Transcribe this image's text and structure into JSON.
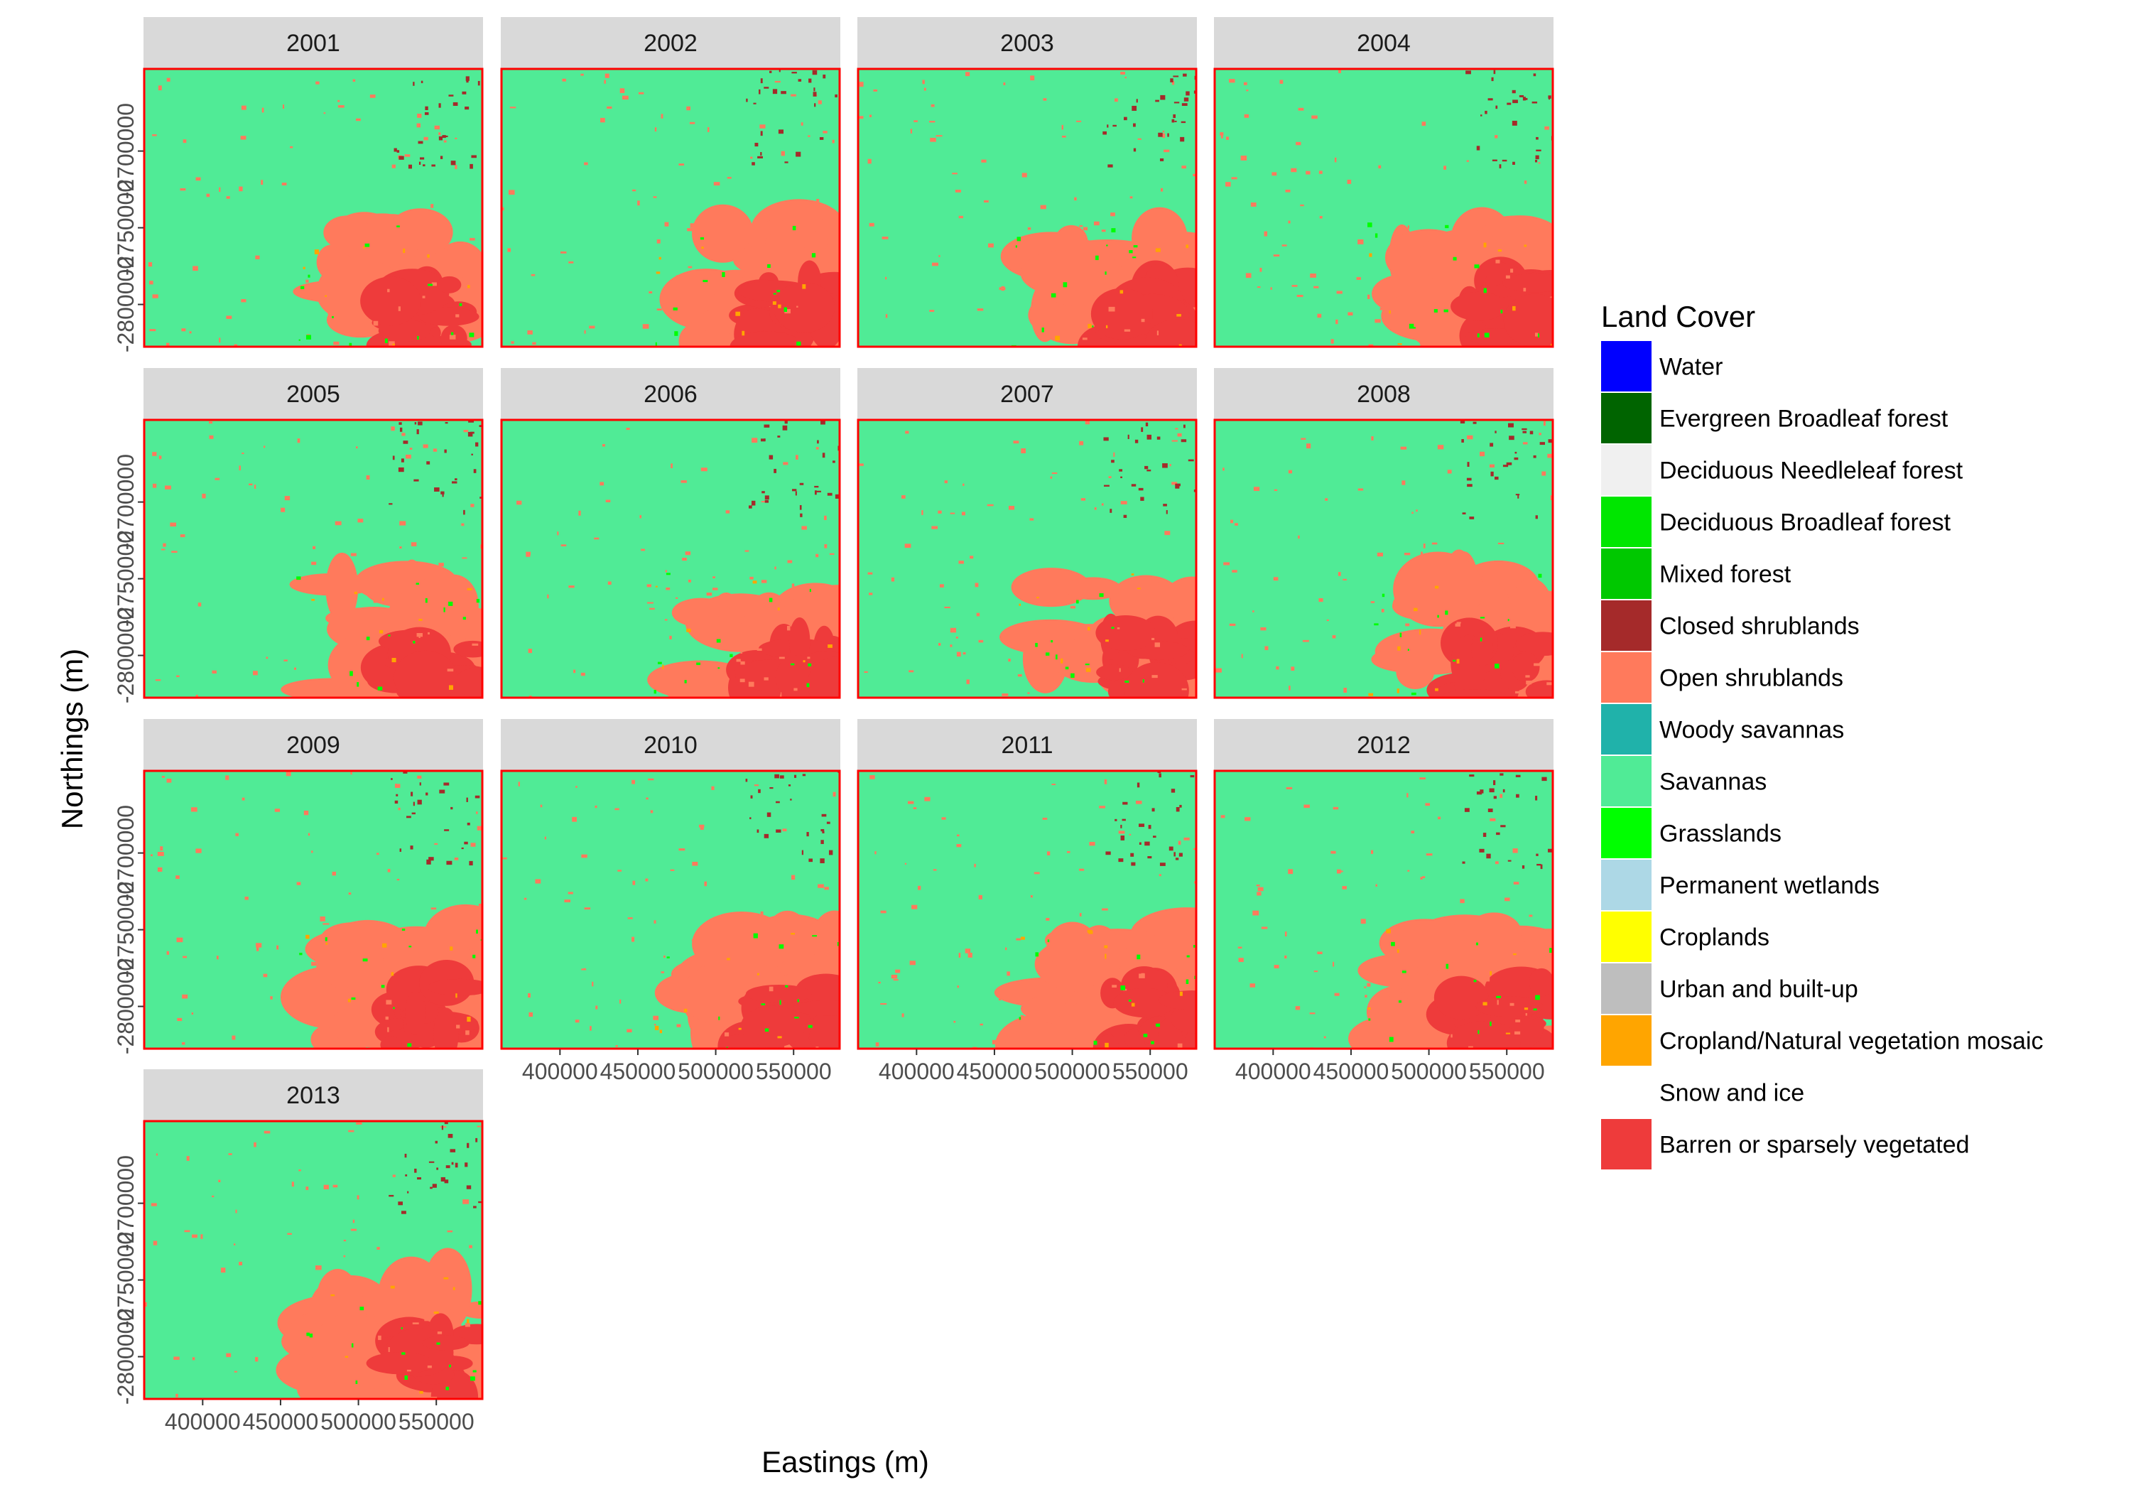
{
  "chart_data": {
    "type": "heatmap",
    "description_visible": "faceted raster maps",
    "xlabel": "Eastings (m)",
    "ylabel": "Northings (m)",
    "x_ticks": [
      {
        "value": 400000,
        "label": "400000"
      },
      {
        "value": 450000,
        "label": "450000"
      },
      {
        "value": 500000,
        "label": "500000"
      },
      {
        "value": 550000,
        "label": "550000"
      }
    ],
    "y_ticks": [
      {
        "value": -2700000,
        "label": "-2700000"
      },
      {
        "value": -2750000,
        "label": "-2750000"
      },
      {
        "value": -2800000,
        "label": "-2800000"
      }
    ],
    "xlim": [
      362000,
      580000
    ],
    "ylim": [
      -2828000,
      -2646000
    ],
    "grid": false,
    "facets": [
      "2001",
      "2002",
      "2003",
      "2004",
      "2005",
      "2006",
      "2007",
      "2008",
      "2009",
      "2010",
      "2011",
      "2012",
      "2013"
    ],
    "facet_layout": {
      "columns": 4,
      "rows": 4
    },
    "legend": {
      "title": "Land Cover",
      "placement": "right",
      "entries": [
        {
          "label": "Water",
          "color": "#0000FF"
        },
        {
          "label": "Evergreen Broadleaf forest",
          "color": "#006400"
        },
        {
          "label": "Deciduous Needleleaf forest",
          "color": "#F0F0F0"
        },
        {
          "label": "Deciduous Broadleaf forest",
          "color": "#00E600"
        },
        {
          "label": "Mixed forest",
          "color": "#00C800"
        },
        {
          "label": "Closed shrublands",
          "color": "#A52A2A"
        },
        {
          "label": "Open shrublands",
          "color": "#FF7A5C"
        },
        {
          "label": "Woody savannas",
          "color": "#20B2AA"
        },
        {
          "label": "Savannas",
          "color": "#50EB96"
        },
        {
          "label": "Grasslands",
          "color": "#00FF00"
        },
        {
          "label": "Permanent wetlands",
          "color": "#ADD8E6"
        },
        {
          "label": "Croplands",
          "color": "#FFFF00"
        },
        {
          "label": "Urban and built-up",
          "color": "#BEBEBE"
        },
        {
          "label": "Cropland/Natural vegetation mosaic",
          "color": "#FFA500"
        },
        {
          "label": "Snow and ice",
          "color": "#FFFFFF"
        },
        {
          "label": "Barren or sparsely vegetated",
          "color": "#EE3B3B"
        }
      ]
    },
    "panel_border_color": "#FF0000",
    "strip_color": "#D9D9D9"
  }
}
